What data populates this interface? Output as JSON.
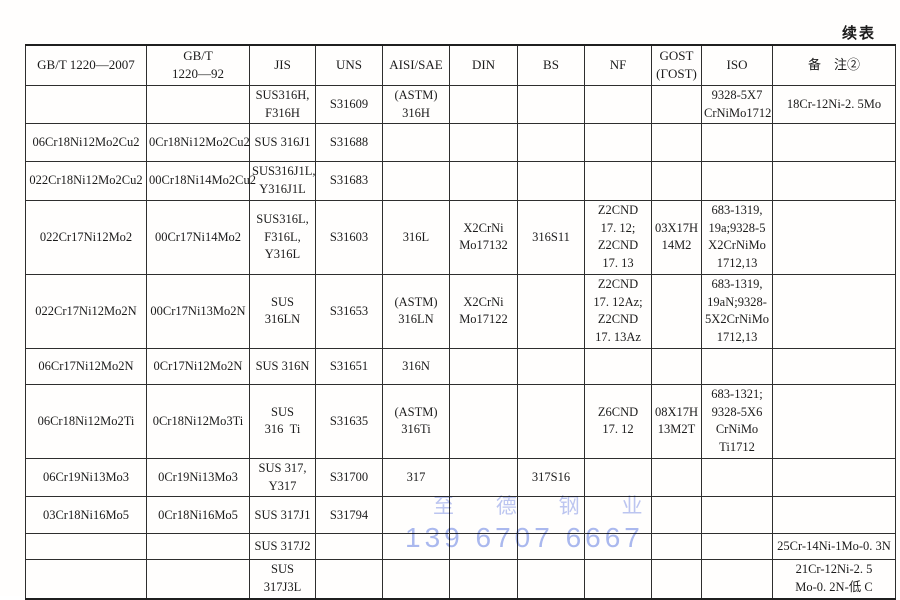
{
  "page": {
    "continued_label": "续表"
  },
  "watermark": {
    "company": "至 德 钢 业",
    "phone": "139 6707 6667",
    "color": "#aab9f0"
  },
  "table": {
    "headers": [
      "GB/T 1220—2007",
      "GB/T\n1220—92",
      "JIS",
      "UNS",
      "AISI/SAE",
      "DIN",
      "BS",
      "NF",
      "GOST\n(ГOST)",
      "ISO",
      "备    注②"
    ],
    "rows": [
      {
        "cells": [
          "",
          "",
          "SUS316H,\nF316H",
          "S31609",
          "(ASTM)\n316H",
          "",
          "",
          "",
          "",
          "9328-5X7\nCrNiMo1712",
          "18Cr-12Ni-2. 5Mo"
        ]
      },
      {
        "cells": [
          "06Cr18Ni12Mo2Cu2",
          "0Cr18Ni12Mo2Cu2",
          "SUS 316J1",
          "S31688",
          "",
          "",
          "",
          "",
          "",
          "",
          ""
        ]
      },
      {
        "cells": [
          "022Cr18Ni12Mo2Cu2",
          "00Cr18Ni14Mo2Cu2",
          "SUS316J1L,\nY316J1L",
          "S31683",
          "",
          "",
          "",
          "",
          "",
          "",
          ""
        ]
      },
      {
        "cells": [
          "022Cr17Ni12Mo2",
          "00Cr17Ni14Mo2",
          "SUS316L,\nF316L,\nY316L",
          "S31603",
          "316L",
          "X2CrNi\nMo17132",
          "316S11",
          "Z2CND\n17. 12;\nZ2CND\n17. 13",
          "03X17H\n14M2",
          "683-1319,\n19a;9328-5\nX2CrNiMo\n1712,13",
          ""
        ]
      },
      {
        "cells": [
          "022Cr17Ni12Mo2N",
          "00Cr17Ni13Mo2N",
          "SUS 316LN",
          "S31653",
          "(ASTM)\n316LN",
          "X2CrNi\nMo17122",
          "",
          "Z2CND\n17. 12Az;\nZ2CND\n17. 13Az",
          "",
          "683-1319,\n19aN;9328-\n5X2CrNiMo\n1712,13",
          ""
        ]
      },
      {
        "cells": [
          "06Cr17Ni12Mo2N",
          "0Cr17Ni12Mo2N",
          "SUS 316N",
          "S31651",
          "316N",
          "",
          "",
          "",
          "",
          "",
          ""
        ]
      },
      {
        "cells": [
          "06Cr18Ni12Mo2Ti",
          "0Cr18Ni12Mo3Ti",
          "SUS\n316  Ti",
          "S31635",
          "(ASTM)\n316Ti",
          "",
          "",
          "Z6CND\n17. 12",
          "08X17H\n13M2T",
          "683-1321;\n9328-5X6\nCrNiMo\nTi1712",
          ""
        ]
      },
      {
        "cells": [
          "06Cr19Ni13Mo3",
          "0Cr19Ni13Mo3",
          "SUS 317,\nY317",
          "S31700",
          "317",
          "",
          "317S16",
          "",
          "",
          "",
          ""
        ]
      },
      {
        "cells": [
          "03Cr18Ni16Mo5",
          "0Cr18Ni16Mo5",
          "SUS 317J1",
          "S31794",
          "",
          "",
          "",
          "",
          "",
          "",
          ""
        ]
      },
      {
        "cells": [
          "",
          "",
          "SUS 317J2",
          "",
          "",
          "",
          "",
          "",
          "",
          "",
          "25Cr-14Ni-1Mo-0. 3N"
        ]
      },
      {
        "cells": [
          "",
          "",
          "SUS 317J3L",
          "",
          "",
          "",
          "",
          "",
          "",
          "",
          "21Cr-12Ni-2. 5\nMo-0. 2N-低 C"
        ]
      }
    ]
  }
}
